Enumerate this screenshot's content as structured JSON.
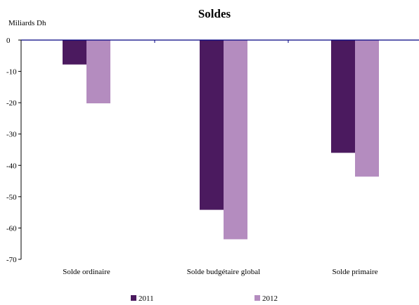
{
  "chart_data": {
    "type": "bar",
    "title": "Soldes",
    "ylabel": "Miliards Dh",
    "xlabel": "",
    "categories": [
      "Solde ordinaire",
      "Solde budgétaire global",
      "Solde primaire"
    ],
    "series": [
      {
        "name": "2011",
        "color": "#4b1a5f",
        "values": [
          -7.8,
          -54.2,
          -36.0
        ]
      },
      {
        "name": "2012",
        "color": "#b48cbf",
        "values": [
          -20.2,
          -63.6,
          -43.6
        ]
      }
    ],
    "ylim": [
      -70,
      0
    ],
    "yticks": [
      0,
      -10,
      -20,
      -30,
      -40,
      -50,
      -60,
      -70
    ],
    "grid": false,
    "legend": "bottom",
    "axis_color": "#000080"
  }
}
